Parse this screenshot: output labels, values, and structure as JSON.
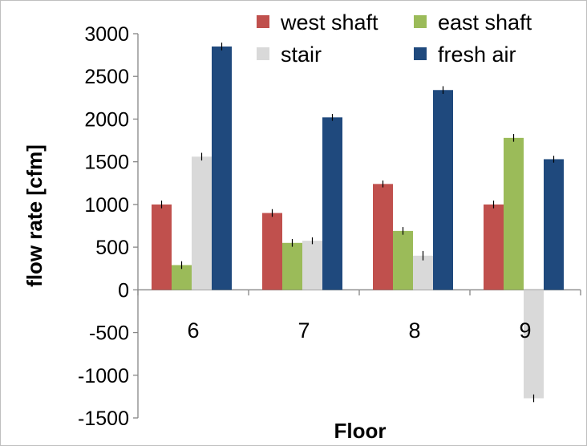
{
  "chart_data": {
    "type": "bar",
    "title": "",
    "xlabel": "Floor",
    "ylabel": "flow rate [cfm]",
    "categories": [
      "6",
      "7",
      "8",
      "9"
    ],
    "ylim": [
      -1500,
      3000
    ],
    "yticks": [
      3000,
      2500,
      2000,
      1500,
      1000,
      500,
      0,
      -500,
      -1000,
      -1500
    ],
    "grid": false,
    "legend_position": "top-right",
    "series": [
      {
        "name": "west shaft",
        "color": "#c0504d",
        "values": [
          1000,
          900,
          1240,
          1000
        ],
        "error": [
          45,
          45,
          40,
          45
        ]
      },
      {
        "name": "east shaft",
        "color": "#9bbb59",
        "values": [
          290,
          550,
          690,
          1780
        ],
        "error": [
          45,
          45,
          45,
          45
        ]
      },
      {
        "name": "stair",
        "color": "#d9d9d9",
        "values": [
          1560,
          575,
          400,
          1270
        ],
        "signed_values": [
          1560,
          575,
          400,
          -1270
        ],
        "error": [
          45,
          40,
          55,
          45
        ]
      },
      {
        "name": "fresh air",
        "color": "#1f497d",
        "values": [
          2850,
          2020,
          2340,
          1530
        ],
        "error": [
          45,
          40,
          45,
          40
        ]
      }
    ]
  }
}
